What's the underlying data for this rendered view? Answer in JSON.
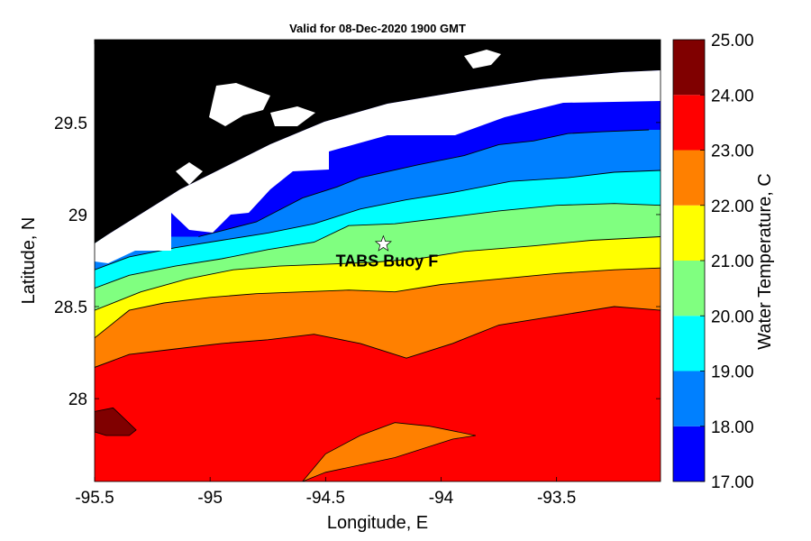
{
  "chart_data": {
    "type": "heatmap",
    "title": "Valid for 08-Dec-2020 1900 GMT",
    "xlabel": "Longitude, E",
    "ylabel": "Latitude, N",
    "colorbar_label": "Water Temperature, C",
    "xlim": [
      -95.5,
      -93.05
    ],
    "ylim": [
      27.55,
      29.95
    ],
    "x_ticks": [
      -95.5,
      -95,
      -94.5,
      -94,
      -93.5
    ],
    "x_tick_labels": [
      "-95.5",
      "-95",
      "-94.5",
      "-94",
      "-93.5"
    ],
    "y_ticks": [
      28,
      28.5,
      29,
      29.5
    ],
    "y_tick_labels": [
      "28",
      "28.5",
      "29",
      "29.5"
    ],
    "levels": [
      17,
      18,
      19,
      20,
      21,
      22,
      23,
      24,
      25
    ],
    "colorbar_tick_labels": [
      "25.00",
      "24.00",
      "23.00",
      "22.00",
      "21.00",
      "20.00",
      "19.00",
      "18.00",
      "17.00"
    ],
    "band_colors": [
      "#0000ff",
      "#0080ff",
      "#00ffff",
      "#80ff80",
      "#ffff00",
      "#ff8000",
      "#ff0000",
      "#800000"
    ],
    "land_color": "#000000",
    "nodata_color": "#ffffff",
    "isotherms": [
      {
        "level": 18,
        "lon": [
          -95.05,
          -94.8,
          -94.6,
          -94.45,
          -94.35,
          -94.1,
          -93.9,
          -93.75,
          -93.6,
          -93.45,
          -93.3,
          -93.1
        ],
        "lat": [
          28.88,
          28.96,
          29.09,
          29.15,
          29.2,
          29.27,
          29.32,
          29.38,
          29.4,
          29.44,
          29.45,
          29.46
        ]
      },
      {
        "level": 19,
        "lon": [
          -95.5,
          -95.35,
          -95.15,
          -94.95,
          -94.75,
          -94.55,
          -94.35,
          -94.15,
          -93.95,
          -93.7,
          -93.45,
          -93.25,
          -93.05
        ],
        "lat": [
          28.7,
          28.77,
          28.82,
          28.86,
          28.9,
          28.95,
          29.03,
          29.08,
          29.12,
          29.18,
          29.2,
          29.23,
          29.24
        ]
      },
      {
        "level": 20,
        "lon": [
          -95.5,
          -95.35,
          -95.15,
          -94.95,
          -94.75,
          -94.55,
          -94.4,
          -94.2,
          -94.0,
          -93.75,
          -93.5,
          -93.25,
          -93.05
        ],
        "lat": [
          28.6,
          28.67,
          28.72,
          28.76,
          28.81,
          28.85,
          28.94,
          28.95,
          28.98,
          29.02,
          29.05,
          29.06,
          29.05
        ]
      },
      {
        "level": 21,
        "lon": [
          -95.5,
          -95.3,
          -95.1,
          -94.9,
          -94.7,
          -94.5,
          -94.3,
          -94.1,
          -93.9,
          -93.6,
          -93.35,
          -93.05
        ],
        "lat": [
          28.48,
          28.58,
          28.65,
          28.7,
          28.72,
          28.73,
          28.74,
          28.76,
          28.8,
          28.83,
          28.86,
          28.88
        ]
      },
      {
        "level": 22,
        "lon": [
          -95.5,
          -95.35,
          -95.2,
          -95.0,
          -94.8,
          -94.6,
          -94.4,
          -94.2,
          -94.0,
          -93.75,
          -93.5,
          -93.25,
          -93.05
        ],
        "lat": [
          28.33,
          28.48,
          28.52,
          28.55,
          28.57,
          28.58,
          28.59,
          28.58,
          28.62,
          28.65,
          28.68,
          28.7,
          28.71
        ]
      },
      {
        "level": 23,
        "lon": [
          -95.5,
          -95.35,
          -95.15,
          -94.95,
          -94.75,
          -94.55,
          -94.35,
          -94.15,
          -93.95,
          -93.75,
          -93.5,
          -93.25,
          -93.05
        ],
        "lat": [
          28.17,
          28.24,
          28.27,
          28.3,
          28.32,
          28.35,
          28.3,
          28.22,
          28.3,
          28.4,
          28.45,
          28.5,
          28.48
        ]
      }
    ],
    "warm_patch_24": {
      "lon": [
        -95.5,
        -95.42,
        -95.32,
        -95.35,
        -95.45,
        -95.5
      ],
      "lat": [
        27.93,
        27.95,
        27.83,
        27.8,
        27.8,
        27.82
      ]
    },
    "cool_patch_22": {
      "lon": [
        -94.6,
        -94.5,
        -94.35,
        -94.2,
        -94.05,
        -93.85,
        -93.95,
        -94.2,
        -94.5,
        -94.6
      ],
      "lat": [
        27.55,
        27.7,
        27.8,
        27.87,
        27.85,
        27.8,
        27.78,
        27.68,
        27.6,
        27.55
      ]
    },
    "annotation": {
      "text": "TABS Buoy F",
      "marker": "star",
      "lon": -94.25,
      "lat": 28.84,
      "marker_color": "#ffffff"
    }
  }
}
